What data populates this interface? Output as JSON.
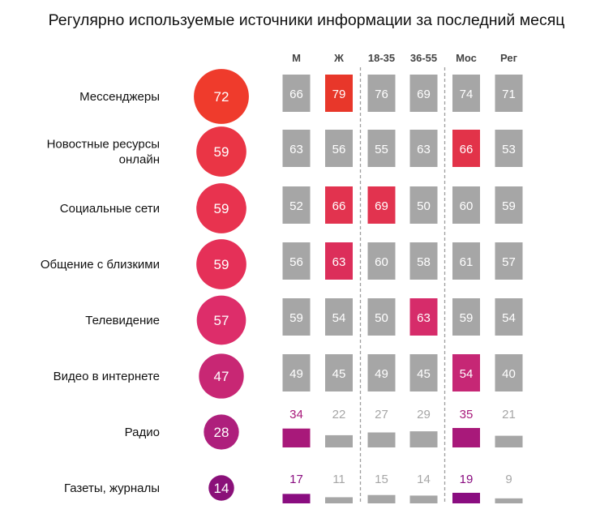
{
  "chart_data": {
    "type": "table",
    "title": "Регулярно используемые источники информации за последний месяц",
    "rows": [
      "Мессенджеры",
      "Новостные ресурсы онлайн",
      "Социальные сети",
      "Общение с близкими",
      "Телевидение",
      "Видео в интернете",
      "Радио",
      "Газеты, журналы"
    ],
    "row_label_lines": [
      [
        "Мессенджеры"
      ],
      [
        "Новостные ресурсы",
        "онлайн"
      ],
      [
        "Социальные сети"
      ],
      [
        "Общение с близкими"
      ],
      [
        "Телевидение"
      ],
      [
        "Видео в интернете"
      ],
      [
        "Радио"
      ],
      [
        "Газеты, журналы"
      ]
    ],
    "total": [
      72,
      59,
      59,
      59,
      57,
      47,
      28,
      14
    ],
    "total_colors": [
      "#ef3b2c",
      "#ea3545",
      "#e8334f",
      "#e53058",
      "#dd2d6a",
      "#c82774",
      "#ae1f7c",
      "#8a1079"
    ],
    "columns": [
      "М",
      "Ж",
      "18-35",
      "36-55",
      "Мос",
      "Рег"
    ],
    "series": [
      {
        "name": "М",
        "values": [
          66,
          63,
          52,
          56,
          59,
          49,
          34,
          17
        ]
      },
      {
        "name": "Ж",
        "values": [
          79,
          56,
          66,
          63,
          54,
          45,
          22,
          11
        ]
      },
      {
        "name": "18-35",
        "values": [
          76,
          55,
          69,
          60,
          50,
          49,
          27,
          15
        ]
      },
      {
        "name": "36-55",
        "values": [
          69,
          63,
          50,
          58,
          63,
          45,
          29,
          14
        ]
      },
      {
        "name": "Мос",
        "values": [
          74,
          66,
          60,
          61,
          59,
          54,
          35,
          19
        ]
      },
      {
        "name": "Рег",
        "values": [
          71,
          53,
          59,
          57,
          54,
          40,
          21,
          9
        ]
      }
    ],
    "highlights": [
      {
        "row": 0,
        "col": 1,
        "color": "#e8372a"
      },
      {
        "row": 1,
        "col": 4,
        "color": "#e23349"
      },
      {
        "row": 2,
        "col": 1,
        "color": "#e2334f"
      },
      {
        "row": 2,
        "col": 2,
        "color": "#e2334f"
      },
      {
        "row": 3,
        "col": 1,
        "color": "#dc2e5a"
      },
      {
        "row": 4,
        "col": 3,
        "color": "#d62c6a"
      },
      {
        "row": 5,
        "col": 4,
        "color": "#c62775"
      },
      {
        "row": 6,
        "col": 0,
        "color": "#a8197a"
      },
      {
        "row": 6,
        "col": 4,
        "color": "#a8197a"
      },
      {
        "row": 7,
        "col": 0,
        "color": "#8a0d80"
      },
      {
        "row": 7,
        "col": 4,
        "color": "#8a0d80"
      }
    ],
    "neutral_color": "#a6a6a6",
    "small_label_color": "#a6a6a6",
    "grid": false
  }
}
